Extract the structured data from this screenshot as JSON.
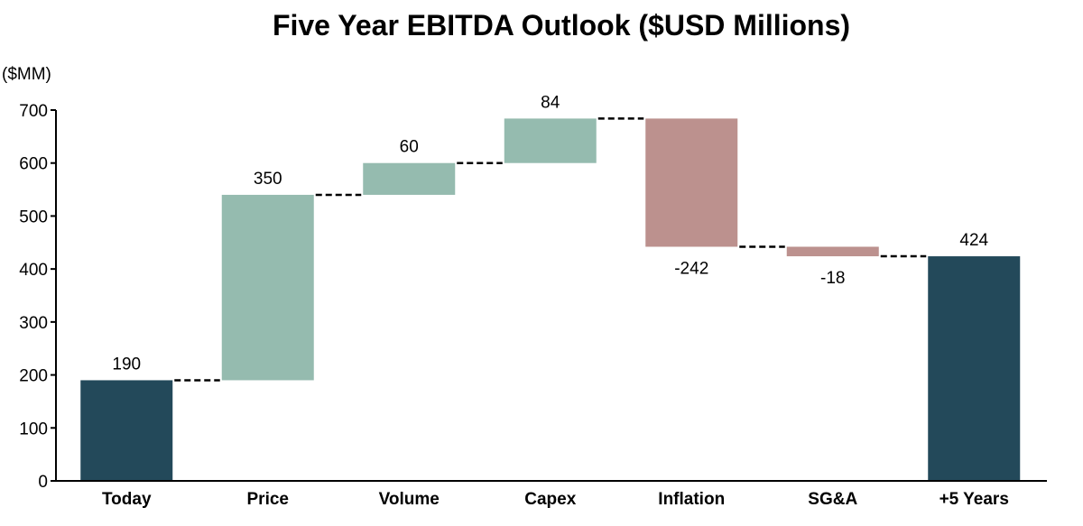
{
  "chart_data": {
    "type": "waterfall",
    "title": "Five Year EBITDA Outlook ($USD Millions)",
    "ylabel": "($MM)",
    "xlabel": "",
    "ylim": [
      0,
      700
    ],
    "yticks": [
      0,
      100,
      200,
      300,
      400,
      500,
      600,
      700
    ],
    "categories": [
      "Today",
      "Price",
      "Volume",
      "Capex",
      "Inflation",
      "SG&A",
      "+5 Years"
    ],
    "values": [
      190,
      350,
      60,
      84,
      -242,
      -18,
      424
    ],
    "value_labels": [
      "190",
      "350",
      "60",
      "84",
      "-242",
      "-18",
      "424"
    ],
    "kinds": [
      "total",
      "delta",
      "delta",
      "delta",
      "delta",
      "delta",
      "total"
    ],
    "colors": {
      "total": "#23495a",
      "increase": "#95bbaf",
      "decrease": "#bc918e",
      "axis": "#000000",
      "connector": "#000000"
    },
    "grid": false,
    "legend": "none"
  }
}
